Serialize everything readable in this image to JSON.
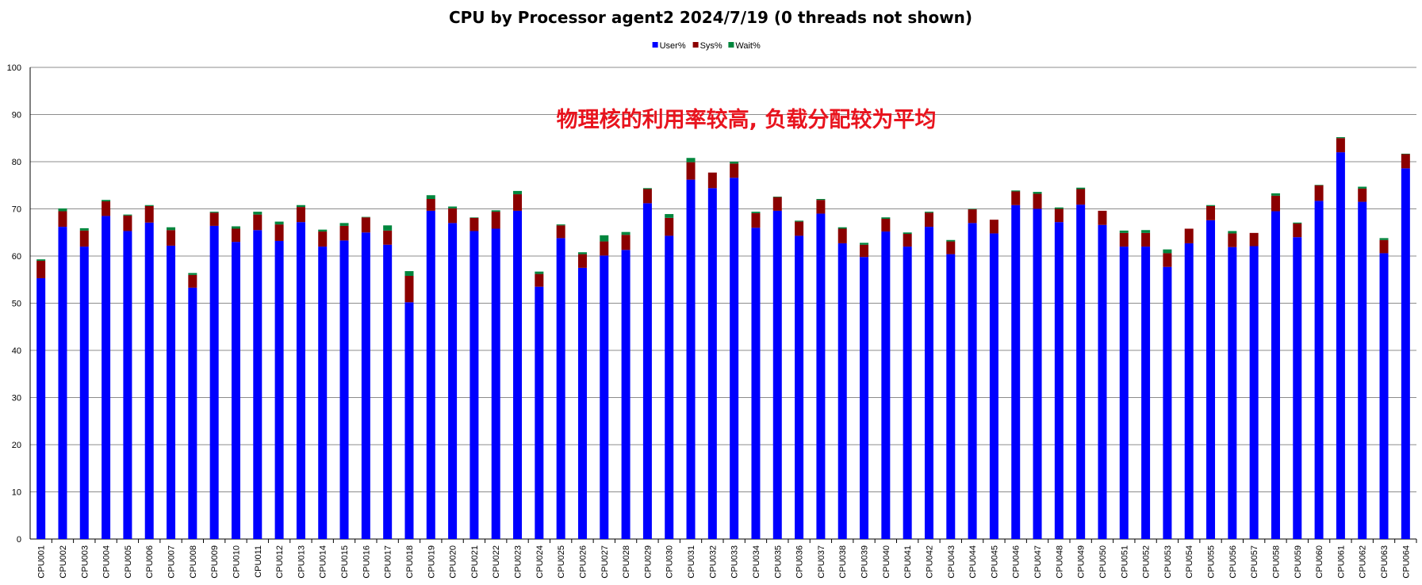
{
  "chart_data": {
    "type": "bar",
    "stacked": true,
    "title": "CPU by Processor agent2  2024/7/19    (0 threads not shown)",
    "xlabel": "",
    "ylabel": "",
    "ylim": [
      0,
      100
    ],
    "yticks": [
      0,
      10,
      20,
      30,
      40,
      50,
      60,
      70,
      80,
      90,
      100
    ],
    "grid": true,
    "legend_position": "top-center",
    "annotation": "物理核的利用率较高, 负载分配较为平均",
    "categories": [
      "CPU001",
      "CPU002",
      "CPU003",
      "CPU004",
      "CPU005",
      "CPU006",
      "CPU007",
      "CPU008",
      "CPU009",
      "CPU010",
      "CPU011",
      "CPU012",
      "CPU013",
      "CPU014",
      "CPU015",
      "CPU016",
      "CPU017",
      "CPU018",
      "CPU019",
      "CPU020",
      "CPU021",
      "CPU022",
      "CPU023",
      "CPU024",
      "CPU025",
      "CPU026",
      "CPU027",
      "CPU028",
      "CPU029",
      "CPU030",
      "CPU031",
      "CPU032",
      "CPU033",
      "CPU034",
      "CPU035",
      "CPU036",
      "CPU037",
      "CPU038",
      "CPU039",
      "CPU040",
      "CPU041",
      "CPU042",
      "CPU043",
      "CPU044",
      "CPU045",
      "CPU046",
      "CPU047",
      "CPU048",
      "CPU049",
      "CPU050",
      "CPU051",
      "CPU052",
      "CPU053",
      "CPU054",
      "CPU055",
      "CPU056",
      "CPU057",
      "CPU058",
      "CPU059",
      "CPU060",
      "CPU061",
      "CPU062",
      "CPU063",
      "CPU064"
    ],
    "series": [
      {
        "name": "User%",
        "color": "#0000ff",
        "values": [
          55.3,
          66.2,
          62.0,
          68.5,
          65.3,
          67.1,
          62.2,
          53.3,
          66.4,
          63.0,
          65.5,
          63.2,
          67.2,
          62.0,
          63.3,
          65.0,
          62.4,
          50.2,
          69.6,
          67.0,
          65.3,
          65.8,
          69.6,
          53.5,
          63.8,
          57.5,
          60.1,
          61.3,
          71.2,
          64.3,
          76.2,
          74.4,
          76.6,
          66.0,
          69.6,
          64.3,
          69.0,
          62.7,
          59.8,
          65.2,
          62.0,
          66.2,
          60.4,
          67.0,
          64.8,
          70.8,
          70.0,
          67.2,
          70.9,
          66.6,
          62.0,
          62.0,
          57.7,
          62.7,
          67.6,
          61.9,
          62.1,
          69.5,
          64.0,
          71.7,
          82.0,
          71.5,
          60.6,
          78.6
        ]
      },
      {
        "name": "Sys%",
        "color": "#8b0000",
        "values": [
          3.7,
          3.3,
          3.4,
          3.1,
          3.3,
          3.5,
          3.3,
          2.7,
          2.8,
          2.8,
          3.3,
          3.5,
          3.2,
          3.2,
          3.1,
          3.2,
          3.0,
          5.6,
          2.5,
          3.1,
          2.8,
          3.6,
          3.5,
          2.7,
          2.7,
          2.9,
          3.0,
          3.2,
          3.0,
          3.8,
          3.7,
          3.3,
          3.0,
          3.1,
          2.9,
          3.0,
          2.9,
          3.1,
          2.6,
          2.7,
          2.7,
          3.0,
          2.7,
          2.9,
          2.9,
          2.9,
          3.2,
          2.8,
          3.3,
          3.0,
          2.9,
          2.9,
          2.9,
          3.1,
          3.0,
          2.9,
          2.8,
          3.3,
          2.9,
          3.3,
          3.0,
          2.8,
          2.8,
          3.0
        ]
      },
      {
        "name": "Wait%",
        "color": "#00863d",
        "values": [
          0.3,
          0.6,
          0.5,
          0.3,
          0.2,
          0.2,
          0.6,
          0.4,
          0.2,
          0.5,
          0.6,
          0.6,
          0.4,
          0.4,
          0.6,
          0.1,
          1.1,
          1.0,
          0.8,
          0.4,
          0.1,
          0.3,
          0.7,
          0.5,
          0.2,
          0.4,
          1.3,
          0.6,
          0.2,
          0.8,
          0.9,
          0.0,
          0.4,
          0.3,
          0.1,
          0.2,
          0.2,
          0.3,
          0.4,
          0.3,
          0.3,
          0.2,
          0.3,
          0.1,
          0.0,
          0.2,
          0.4,
          0.3,
          0.3,
          0.0,
          0.5,
          0.6,
          0.8,
          0.0,
          0.2,
          0.5,
          0.0,
          0.5,
          0.2,
          0.1,
          0.2,
          0.4,
          0.4,
          0.1
        ]
      }
    ]
  }
}
